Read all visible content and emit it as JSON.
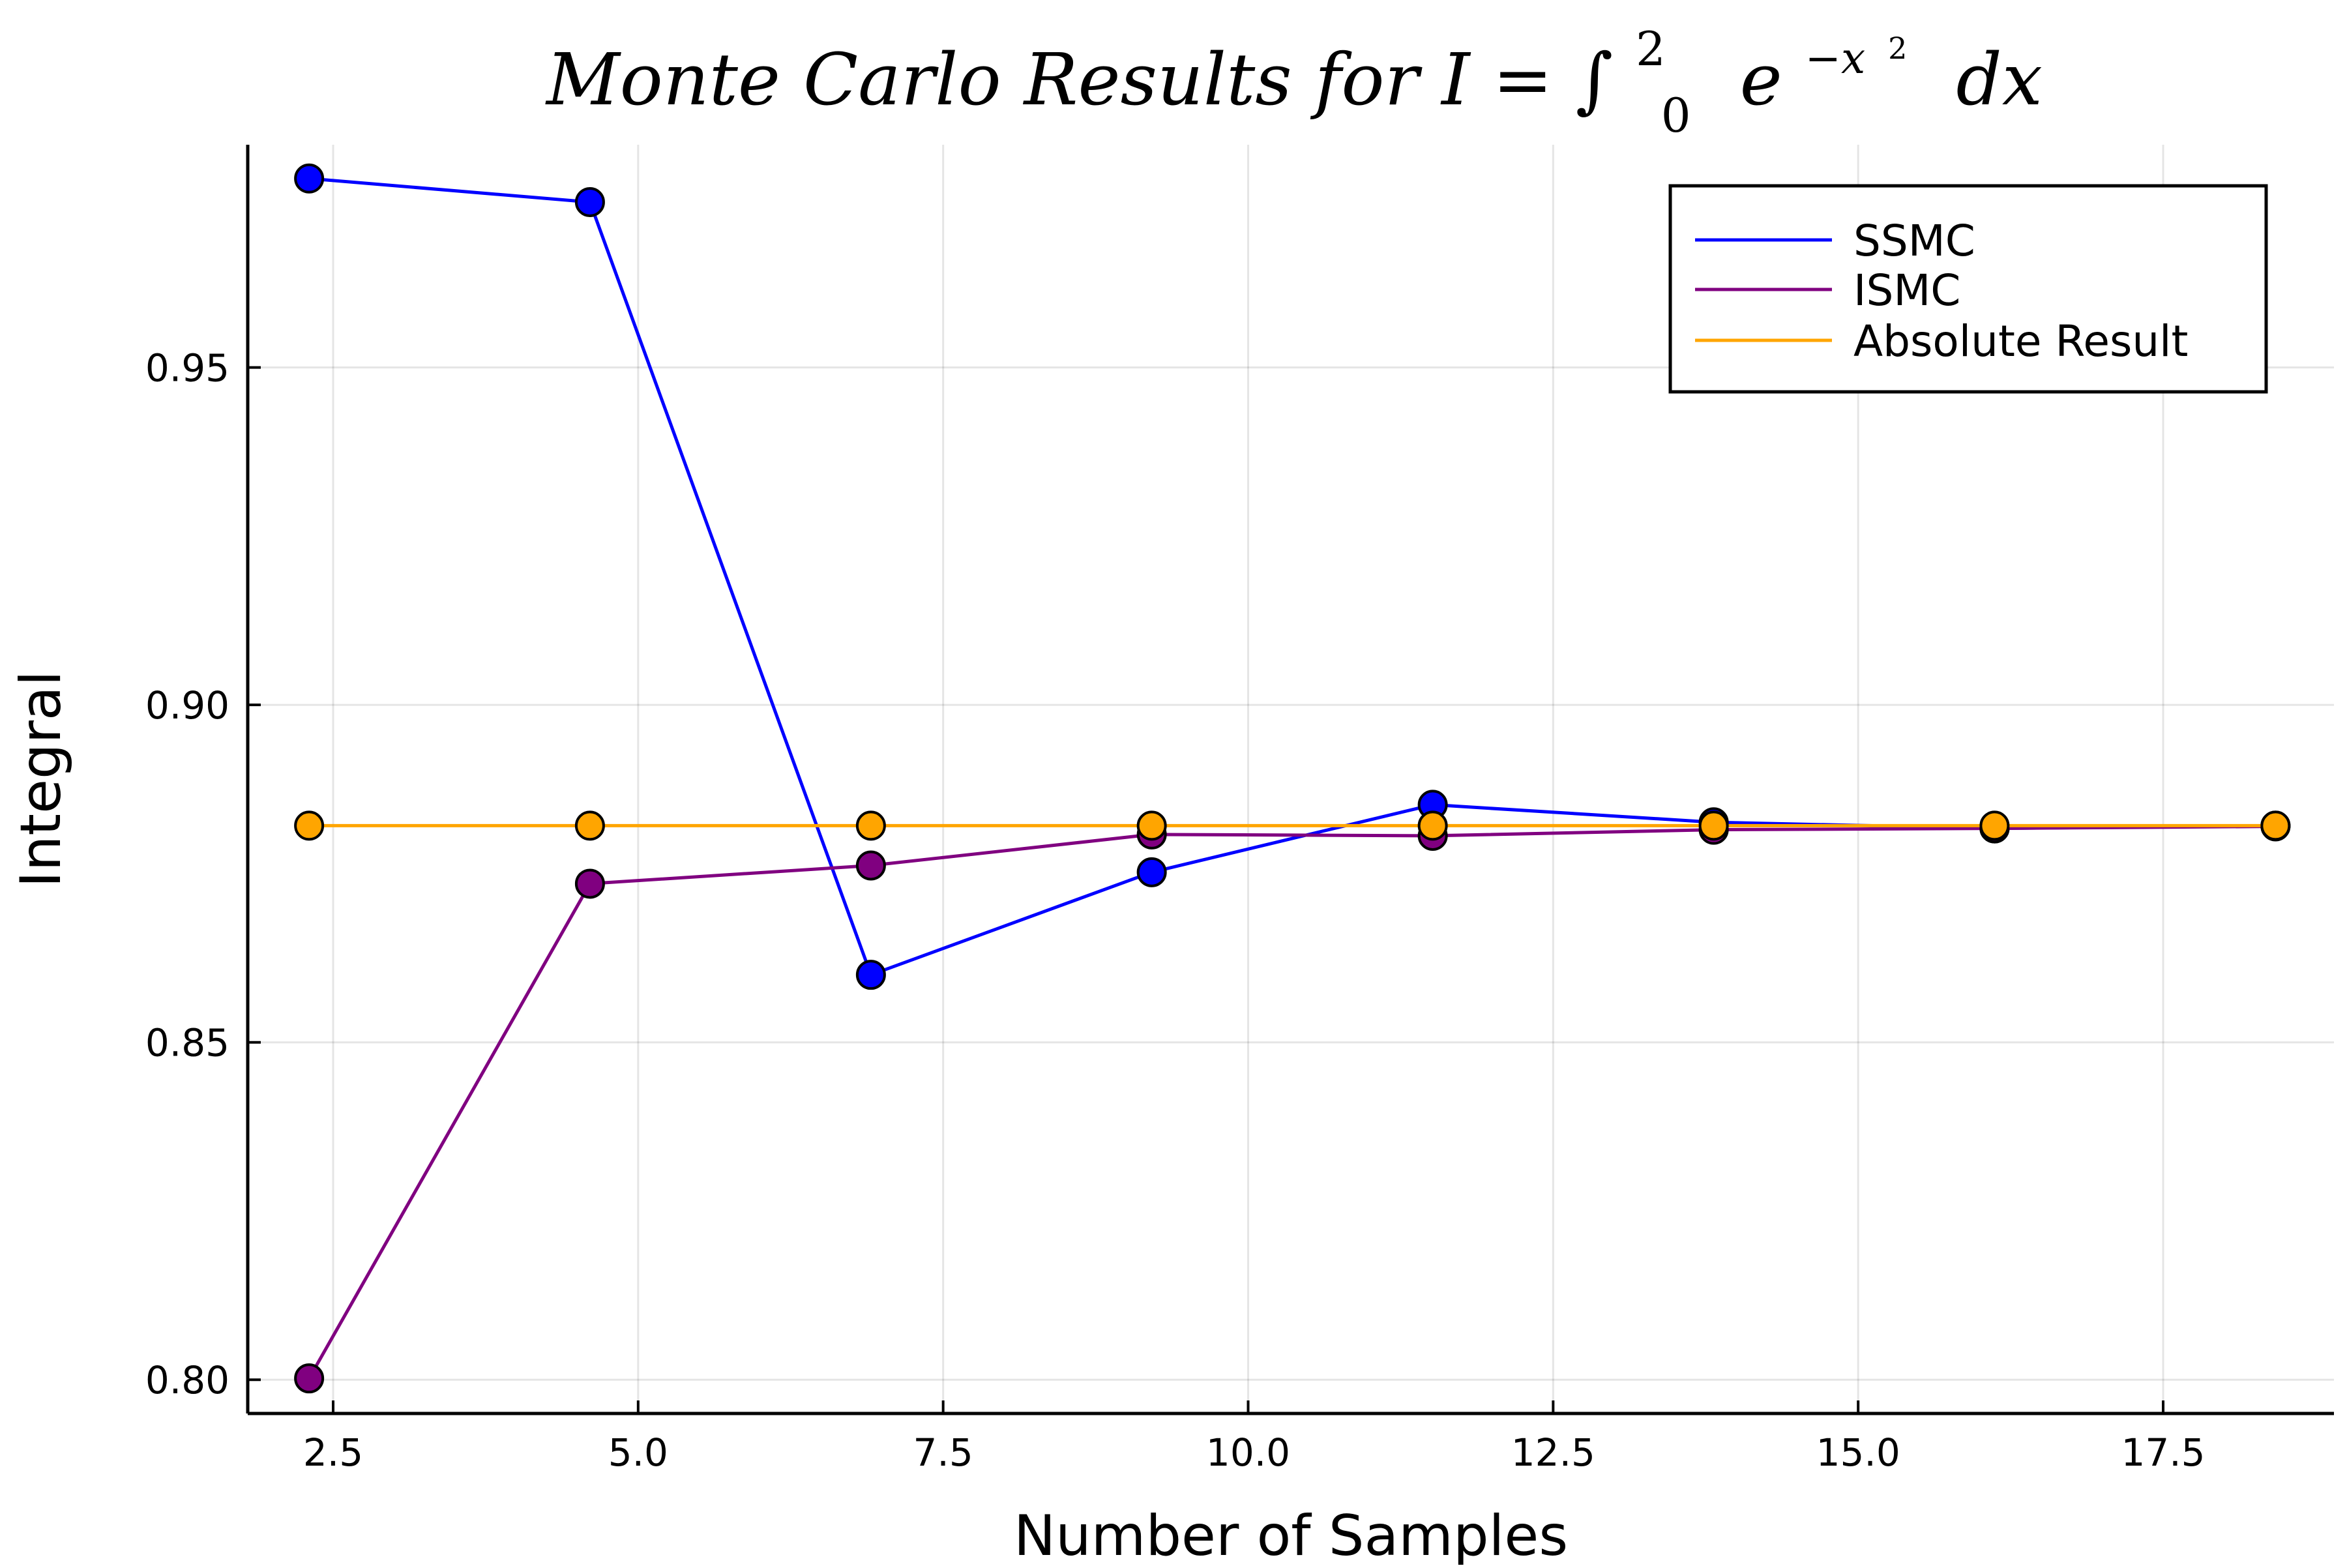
{
  "chart_data": {
    "type": "line",
    "title_parts": {
      "prefix": "Monte Carlo Results for I = ",
      "integral": "∫",
      "upper": "2",
      "lower": "0",
      "base": "e",
      "exponent": "−x",
      "exp_power": "2",
      "suffix": "dx"
    },
    "xlabel": "Number of Samples",
    "ylabel": "Integral",
    "xlim": [
      1.8,
      18.9
    ],
    "ylim": [
      0.795,
      0.983
    ],
    "xticks": [
      2.5,
      5.0,
      7.5,
      10.0,
      12.5,
      15.0,
      17.5
    ],
    "xtick_labels": [
      "2.5",
      "5.0",
      "7.5",
      "10.0",
      "12.5",
      "15.0",
      "17.5"
    ],
    "yticks": [
      0.8,
      0.85,
      0.9,
      0.95
    ],
    "ytick_labels": [
      "0.80",
      "0.85",
      "0.90",
      "0.95"
    ],
    "grid": true,
    "legend_position": "top-right",
    "x": [
      2.303,
      4.605,
      6.908,
      9.21,
      11.513,
      13.816,
      16.118,
      18.421
    ],
    "series": [
      {
        "name": "SSMC",
        "color": "#0000ff",
        "values": [
          0.978,
          0.9745,
          0.86,
          0.8752,
          0.8852,
          0.8826,
          0.8817,
          0.8821
        ]
      },
      {
        "name": "ISMC",
        "color": "#800080",
        "values": [
          0.8002,
          0.8735,
          0.8762,
          0.8808,
          0.8806,
          0.8815,
          0.8817,
          0.882
        ]
      },
      {
        "name": "Absolute Result",
        "color": "#ffa500",
        "values": [
          0.8821,
          0.8821,
          0.8821,
          0.8821,
          0.8821,
          0.8821,
          0.8821,
          0.8821
        ]
      }
    ]
  }
}
